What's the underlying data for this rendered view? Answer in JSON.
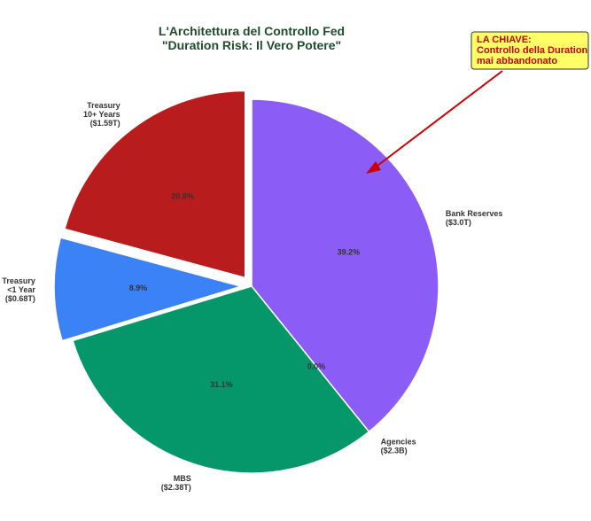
{
  "chart_data": {
    "type": "pie",
    "title_lines": [
      "L'Architettura del Controllo Fed",
      "\"Duration Risk: Il Vero Potere\""
    ],
    "slices": [
      {
        "label_lines": [
          "Bank Reserves",
          "($3.0T)"
        ],
        "value": 39.2,
        "pct_label": "39.2%",
        "color": "#8B5CF6",
        "explode": false
      },
      {
        "label_lines": [
          "Agencies",
          "($2.3B)"
        ],
        "value": 0.0,
        "pct_label": "0.0%",
        "color": "#F59E0B",
        "explode": false
      },
      {
        "label_lines": [
          "MBS",
          "($2.38T)"
        ],
        "value": 31.1,
        "pct_label": "31.1%",
        "color": "#059669",
        "explode": false
      },
      {
        "label_lines": [
          "Treasury",
          "<1 Year",
          "($0.68T)"
        ],
        "value": 8.9,
        "pct_label": "8.9%",
        "color": "#3B82F6",
        "explode": true
      },
      {
        "label_lines": [
          "Treasury",
          "10+ Years",
          "($1.59T)"
        ],
        "value": 20.8,
        "pct_label": "20.8%",
        "color": "#B91C1C",
        "explode": true
      }
    ],
    "start_angle_deg": 90,
    "direction": "clockwise",
    "annotation": {
      "lines": [
        "LA CHIAVE:",
        "Controllo della Duration",
        "mai abbandonato"
      ],
      "text_color": "#CC0000",
      "box_fill": "#FFFF66",
      "box_stroke": "#333333",
      "arrow_color": "#CC0000",
      "points_to": "Bank Reserves"
    },
    "title_color": "#1F4D2B"
  }
}
